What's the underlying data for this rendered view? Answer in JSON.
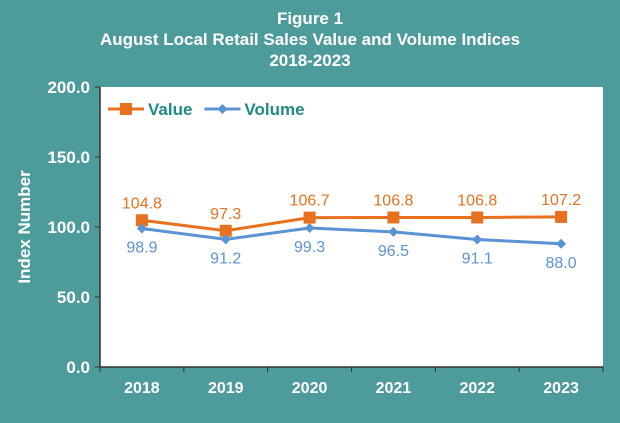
{
  "chart_data": {
    "type": "line",
    "title": "Figure 1",
    "subtitle": "August Local Retail Sales Value and Volume Indices",
    "subtitle2": "2018-2023",
    "xlabel": "",
    "ylabel": "Index Number",
    "categories": [
      "2018",
      "2019",
      "2020",
      "2021",
      "2022",
      "2023"
    ],
    "ylim": [
      0,
      200
    ],
    "yticks": [
      "0.0",
      "50.0",
      "100.0",
      "150.0",
      "200.0"
    ],
    "grid": false,
    "legend_position": "top-left",
    "series": [
      {
        "name": "Value",
        "color": "#e8711f",
        "marker": "square",
        "values": [
          104.8,
          97.3,
          106.7,
          106.8,
          106.8,
          107.2
        ],
        "labels": [
          "104.8",
          "97.3",
          "106.7",
          "106.8",
          "106.8",
          "107.2"
        ]
      },
      {
        "name": "Volume",
        "color": "#5b93d3",
        "marker": "diamond",
        "values": [
          98.9,
          91.2,
          99.3,
          96.5,
          91.1,
          88.0
        ],
        "labels": [
          "98.9",
          "91.2",
          "99.3",
          "96.5",
          "91.1",
          "88.0"
        ]
      }
    ]
  }
}
